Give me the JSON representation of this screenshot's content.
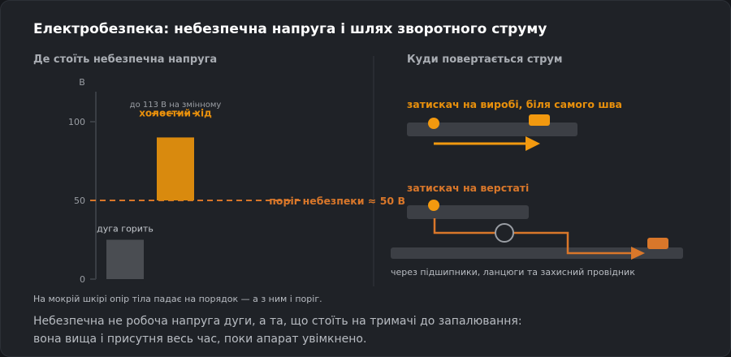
{
  "title": "Електробезпека: небезпечна напруга і шлях зворотного струму",
  "left_panel": {
    "heading": "Де стоїть небезпечна напруга",
    "note": "На мокрій шкірі опір тіла падає на порядок — а з ним і поріг."
  },
  "right_panel": {
    "heading": "Куди повертається струм",
    "good_label": "затискач на виробі, біля самого шва",
    "bad_label": "затискач на верстаті",
    "path_caption": "через підшипники, ланцюги та захисний провідник"
  },
  "summary": {
    "line1": "Небезпечна не робоча напруга дуги, а та, що стоїть на тримачі до запалювання:",
    "line2": "вона вища і присутня весь час, поки апарат увімкнено."
  },
  "colors": {
    "accent": "#e8900c",
    "bar": "#d98a0e",
    "arc_bar": "#4a4d52",
    "threshold": "#d9772a",
    "workpiece": "#3c3f45"
  },
  "chart_data": {
    "type": "bar",
    "ylabel": "В",
    "ylim": [
      0,
      113
    ],
    "yticks": [
      0,
      50,
      100
    ],
    "bars": [
      {
        "label": "дуга горить",
        "range": [
          0,
          25
        ],
        "color": "#4a4d52"
      },
      {
        "label": "холостий хід",
        "range": [
          50,
          90
        ],
        "color": "#d98a0e"
      }
    ],
    "max_marker": {
      "value": 113,
      "label": "до 113 В на змінному"
    },
    "threshold": {
      "value": 50,
      "label": "поріг небезпеки ≈ 50 В"
    }
  }
}
